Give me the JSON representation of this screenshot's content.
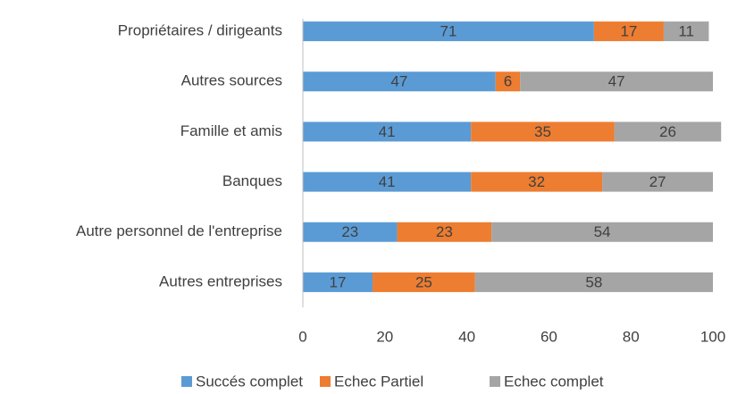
{
  "chart_data": {
    "type": "stacked_bar_horizontal",
    "categories": [
      "Propriétaires / dirigeants",
      "Autres sources",
      "Famille et amis",
      "Banques",
      "Autre personnel de l'entreprise",
      "Autres entreprises"
    ],
    "series": [
      {
        "name": "Succés complet",
        "color": "#5b9bd5",
        "values": [
          71,
          47,
          41,
          41,
          23,
          17
        ]
      },
      {
        "name": "Echec Partiel",
        "color": "#ed7d31",
        "values": [
          17,
          6,
          35,
          32,
          23,
          25
        ]
      },
      {
        "name": "Echec complet",
        "color": "#a5a5a5",
        "values": [
          11,
          47,
          26,
          27,
          54,
          58
        ]
      }
    ],
    "xlim": [
      0,
      100
    ],
    "xticks": [
      0,
      20,
      40,
      60,
      80,
      100
    ],
    "grid": false,
    "legend": "bottom"
  }
}
